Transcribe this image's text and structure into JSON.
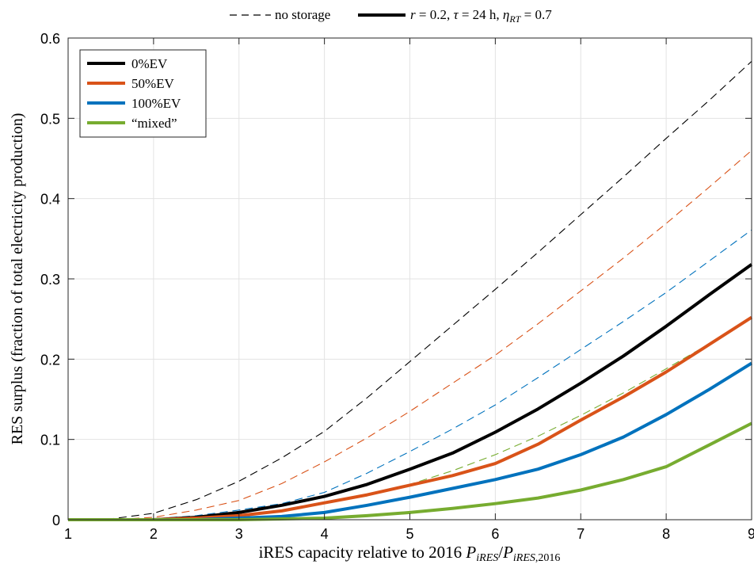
{
  "chart_data": {
    "type": "line",
    "xlabel": "iRES capacity relative to 2016 P_iRES/P_iRES,2016",
    "ylabel": "RES surplus (fraction of total electricity production)",
    "xlim": [
      1,
      9
    ],
    "ylim": [
      0,
      0.6
    ],
    "x_ticks": [
      1,
      2,
      3,
      4,
      5,
      6,
      7,
      8,
      9
    ],
    "y_ticks": [
      0,
      0.1,
      0.2,
      0.3,
      0.4,
      0.5,
      0.6
    ],
    "x_tick_labels": [
      "1",
      "2",
      "3",
      "4",
      "5",
      "6",
      "7",
      "8",
      "9"
    ],
    "y_tick_labels": [
      "0",
      "0.1",
      "0.2",
      "0.3",
      "0.4",
      "0.5",
      "0.6"
    ],
    "grid": true,
    "top_legend": {
      "entries": [
        {
          "label": "no storage",
          "style": "dashed"
        },
        {
          "label": "r = 0.2, τ = 24 h, η_RT = 0.7",
          "style": "solid"
        }
      ]
    },
    "legend": {
      "placement": "top-left",
      "entries": [
        "0%EV",
        "50%EV",
        "100%EV",
        "“mixed”"
      ]
    },
    "x": [
      1,
      1.5,
      2,
      2.5,
      3,
      3.5,
      4,
      4.5,
      5,
      5.5,
      6,
      6.5,
      7,
      7.5,
      8,
      8.5,
      9
    ],
    "series": [
      {
        "name": "0%EV",
        "style": "dashed",
        "color": "#000000",
        "values": [
          0,
          0.001,
          0.008,
          0.025,
          0.048,
          0.077,
          0.11,
          0.152,
          0.197,
          0.242,
          0.287,
          0.333,
          0.38,
          0.427,
          0.475,
          0.522,
          0.571
        ]
      },
      {
        "name": "50%EV",
        "style": "dashed",
        "color": "#d95319",
        "values": [
          0,
          0,
          0.003,
          0.012,
          0.024,
          0.045,
          0.072,
          0.102,
          0.135,
          0.17,
          0.205,
          0.244,
          0.285,
          0.326,
          0.369,
          0.414,
          0.46
        ]
      },
      {
        "name": "100%EV",
        "style": "dashed",
        "color": "#0072bd",
        "values": [
          0,
          0,
          0.001,
          0.005,
          0.012,
          0.02,
          0.034,
          0.058,
          0.085,
          0.113,
          0.143,
          0.177,
          0.212,
          0.247,
          0.283,
          0.322,
          0.361
        ]
      },
      {
        "name": "“mixed”",
        "style": "dashed",
        "color": "#77ac30",
        "values": [
          0,
          0,
          0,
          0.001,
          0.005,
          0.011,
          0.02,
          0.031,
          0.044,
          0.061,
          0.081,
          0.104,
          0.13,
          0.158,
          0.188,
          0.219,
          0.251
        ]
      },
      {
        "name": "0%EV",
        "style": "solid",
        "color": "#000000",
        "values": [
          0,
          0,
          0,
          0.003,
          0.009,
          0.018,
          0.029,
          0.044,
          0.063,
          0.083,
          0.109,
          0.138,
          0.17,
          0.204,
          0.241,
          0.28,
          0.318
        ]
      },
      {
        "name": "50%EV",
        "style": "solid",
        "color": "#d95319",
        "values": [
          0,
          0,
          0,
          0.002,
          0.005,
          0.011,
          0.021,
          0.031,
          0.043,
          0.055,
          0.07,
          0.094,
          0.124,
          0.153,
          0.184,
          0.218,
          0.252
        ]
      },
      {
        "name": "100%EV",
        "style": "solid",
        "color": "#0072bd",
        "values": [
          0,
          0,
          0,
          0,
          0.002,
          0.004,
          0.009,
          0.018,
          0.028,
          0.039,
          0.05,
          0.063,
          0.081,
          0.103,
          0.131,
          0.162,
          0.195
        ]
      },
      {
        "name": "“mixed”",
        "style": "solid",
        "color": "#77ac30",
        "values": [
          0,
          0,
          0,
          0,
          0,
          0.001,
          0.002,
          0.005,
          0.009,
          0.014,
          0.02,
          0.027,
          0.037,
          0.05,
          0.066,
          0.093,
          0.12
        ]
      }
    ]
  }
}
